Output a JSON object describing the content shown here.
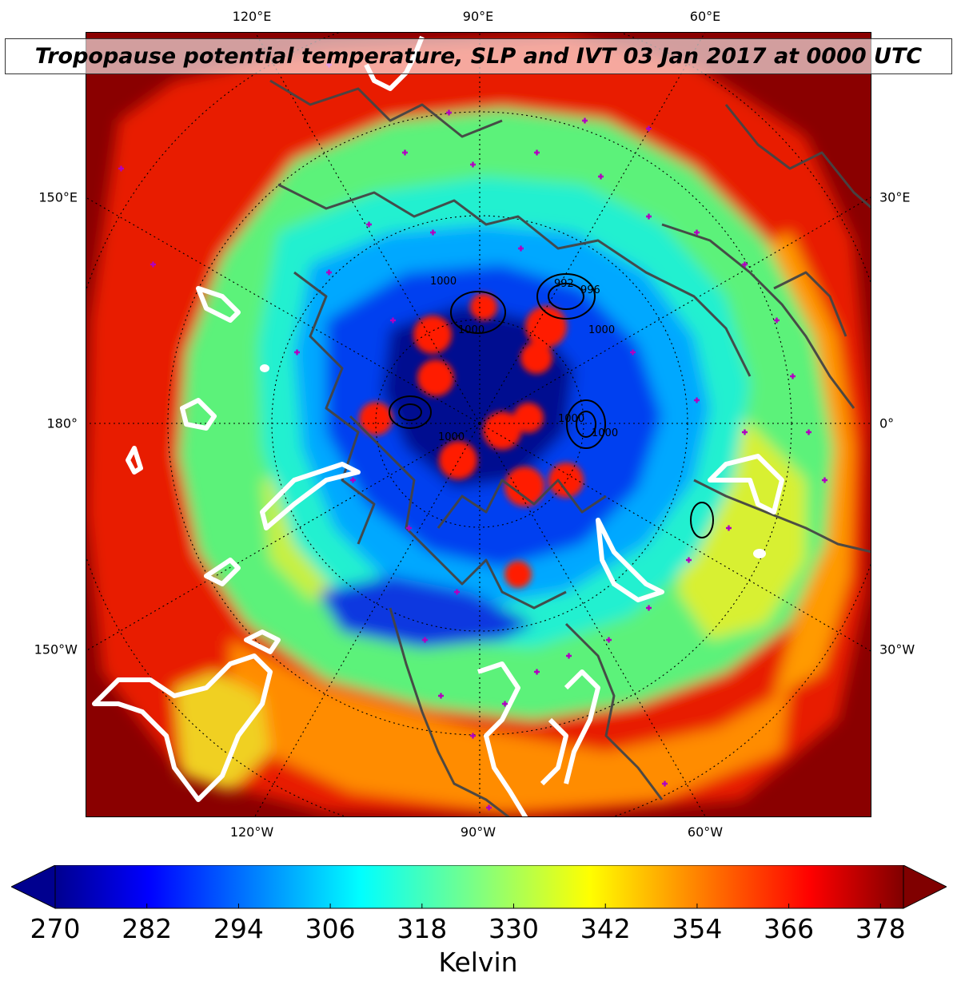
{
  "title": "Tropopause potential temperature, SLP and IVT 03 Jan 2017 at 0000 UTC",
  "lon_labels": {
    "top": [
      "120°E",
      "90°E",
      "60°E"
    ],
    "bottom": [
      "120°W",
      "90°W",
      "60°W"
    ],
    "left": [
      "150°E",
      "180°",
      "150°W"
    ],
    "right": [
      "30°E",
      "0°",
      "30°W"
    ]
  },
  "colorbar": {
    "label": "Kelvin",
    "ticks": [
      "270",
      "282",
      "294",
      "306",
      "318",
      "330",
      "342",
      "354",
      "366",
      "378"
    ],
    "min": 270,
    "max": 381,
    "colormap": "jet",
    "extend": "both"
  },
  "slp_contour_labels": [
    "992",
    "996",
    "1000",
    "1000",
    "1000",
    "1000",
    "1000",
    "1000"
  ],
  "colors": {
    "dark-red": "#7f0000",
    "red": "#ff2000",
    "orange": "#ff9000",
    "yellow": "#f0ff10",
    "light-green": "#80ff70",
    "cyan": "#10ffe0",
    "light-blue": "#00a8ff",
    "blue": "#0040ff",
    "dark-blue": "#00008f",
    "ivt-contour": "#ffffff",
    "slp-contour": "#000000",
    "coastline": "#444444",
    "station-marker": "#b000c0"
  }
}
